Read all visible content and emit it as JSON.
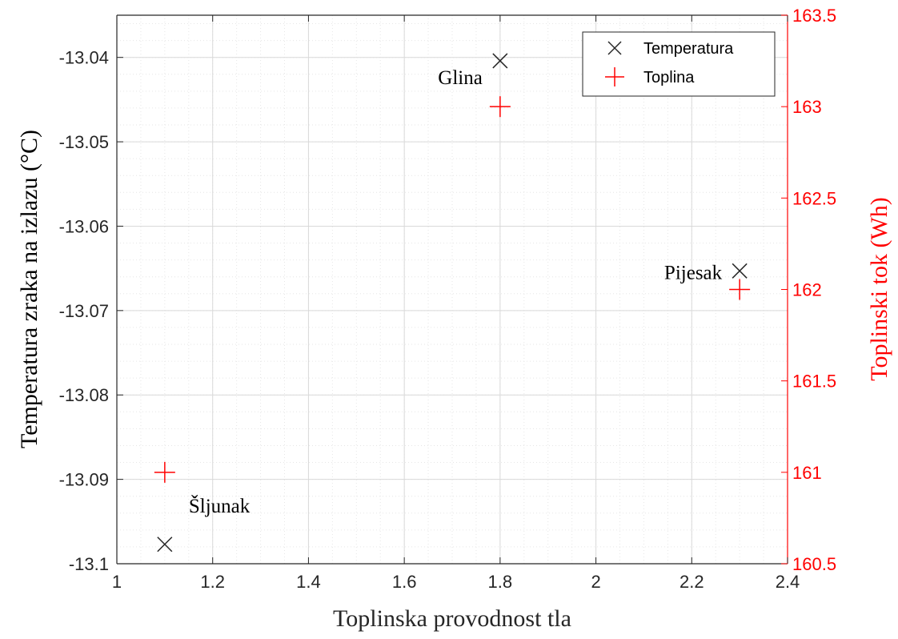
{
  "chart_data": {
    "type": "scatter",
    "xlabel": "Toplinska provodnost tla",
    "ylabel_left": "Temperatura zraka na izlazu (°C)",
    "ylabel_right": "Toplinski tok (Wh)",
    "xlim": [
      1,
      2.4
    ],
    "ylim_left": [
      -13.1,
      -13.035
    ],
    "ylim_right": [
      160.5,
      163.5
    ],
    "x_ticks": [
      1,
      1.2,
      1.4,
      1.6,
      1.8,
      2,
      2.2,
      2.4
    ],
    "x_tick_labels": [
      "1",
      "1.2",
      "1.4",
      "1.6",
      "1.8",
      "2",
      "2.2",
      "2.4"
    ],
    "y_left_ticks": [
      -13.1,
      -13.09,
      -13.08,
      -13.07,
      -13.06,
      -13.05,
      -13.04
    ],
    "y_left_tick_labels": [
      "-13.1",
      "-13.09",
      "-13.08",
      "-13.07",
      "-13.06",
      "-13.05",
      "-13.04"
    ],
    "y_right_ticks": [
      160.5,
      161,
      161.5,
      162,
      162.5,
      163,
      163.5
    ],
    "y_right_tick_labels": [
      "160.5",
      "161",
      "161.5",
      "162",
      "162.5",
      "163",
      "163.5"
    ],
    "grid": true,
    "minor_grid": true,
    "legend_position": "top-right",
    "colors": {
      "left_axis": "#262626",
      "right_axis": "#ff0000",
      "grid_major": "#d9d9d9",
      "grid_minor": "#e6e6e6"
    },
    "series": [
      {
        "name": "Temperatura",
        "axis": "left",
        "marker": "x",
        "color": "#262626",
        "x": [
          1.1,
          1.8,
          2.3
        ],
        "y": [
          -13.0977,
          -13.0404,
          -13.0653
        ]
      },
      {
        "name": "Toplina",
        "axis": "right",
        "marker": "+",
        "color": "#ff0000",
        "x": [
          1.1,
          1.8,
          2.3
        ],
        "y": [
          161.0,
          163.0,
          162.0
        ]
      }
    ],
    "annotations": [
      {
        "text": "Glina",
        "x": 1.8,
        "y_left": -13.0404,
        "side": "left"
      },
      {
        "text": "Pijesak",
        "x": 2.3,
        "y_left": -13.0653,
        "side": "left"
      },
      {
        "text": "Šljunak",
        "x": 1.1,
        "y_left": -13.0977,
        "side": "above-right"
      }
    ]
  }
}
